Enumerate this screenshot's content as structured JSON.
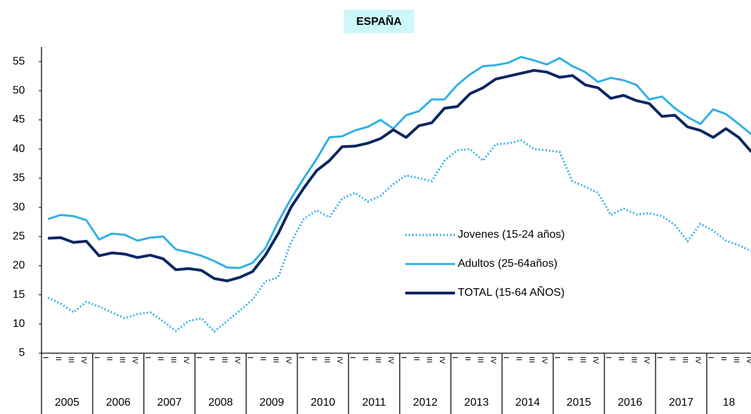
{
  "chart_data": {
    "type": "line",
    "title": "ESPAÑA",
    "categories": [
      "I",
      "II",
      "III",
      "IV",
      "I",
      "II",
      "III",
      "IV",
      "I",
      "II",
      "III",
      "IV",
      "I",
      "II",
      "III",
      "IV",
      "I",
      "II",
      "III",
      "IV",
      "I",
      "II",
      "III",
      "IV",
      "I",
      "II",
      "III",
      "IV",
      "I",
      "II",
      "III",
      "IV",
      "I",
      "II",
      "III",
      "IV",
      "I",
      "II",
      "III",
      "IV",
      "I",
      "II",
      "III",
      "IV",
      "I",
      "II",
      "III",
      "IV",
      "I",
      "II",
      "III",
      "IV",
      "I",
      "II",
      "III",
      "IV"
    ],
    "years": [
      "2005",
      "2006",
      "2007",
      "2008",
      "2009",
      "2010",
      "2011",
      "2012",
      "2013",
      "2014",
      "2015",
      "2016",
      "2017",
      "18"
    ],
    "series": [
      {
        "name": "Jovenes (15-24 años)",
        "color": "#2fb0e6",
        "style": "dotted",
        "values": [
          14.5,
          13.5,
          12,
          13.8,
          13,
          12,
          11,
          11.7,
          12,
          10.5,
          8.8,
          10.5,
          11,
          8.7,
          10.5,
          12.3,
          14.2,
          17.3,
          18,
          24,
          28,
          29.5,
          28.3,
          31.5,
          32.5,
          31,
          32,
          34,
          35.5,
          35,
          34.5,
          38,
          39.8,
          40,
          38,
          40.8,
          41,
          41.5,
          40,
          39.8,
          39.5,
          34.5,
          33.5,
          32.5,
          28.7,
          29.8,
          28.8,
          29,
          28.5,
          27,
          24.2,
          27.2,
          26,
          24.3,
          23.5,
          22.5
        ]
      },
      {
        "name": "Adultos (25-64años)",
        "color": "#2fb0e6",
        "style": "solid",
        "values": [
          28,
          28.7,
          28.5,
          27.8,
          24.5,
          25.5,
          25.3,
          24.3,
          24.8,
          25,
          22.8,
          22.3,
          21.7,
          20.8,
          19.7,
          19.6,
          20.5,
          23,
          27.5,
          31.5,
          35,
          38.3,
          42,
          42.2,
          43.2,
          43.8,
          45,
          43.5,
          45.8,
          46.5,
          48.5,
          48.5,
          51,
          52.8,
          54.2,
          54.4,
          54.8,
          55.8,
          55.2,
          54.5,
          55.6,
          54.2,
          53.2,
          51.5,
          52.2,
          51.8,
          51,
          48.5,
          49,
          47,
          45.5,
          44.3,
          46.8,
          46,
          44.3,
          42.5
        ]
      },
      {
        "name": "TOTAL (15-64 AÑOS)",
        "color": "#0c2660",
        "style": "solid",
        "values": [
          24.7,
          24.8,
          24,
          24.2,
          21.7,
          22.2,
          22,
          21.4,
          21.8,
          21.2,
          19.3,
          19.5,
          19.2,
          17.8,
          17.4,
          18,
          19,
          21.8,
          25.5,
          30,
          33.3,
          36.3,
          38,
          40.4,
          40.5,
          41,
          41.8,
          43.3,
          42,
          44,
          44.5,
          47,
          47.3,
          49.5,
          50.5,
          52,
          52.5,
          53,
          53.5,
          53.2,
          52.3,
          52.6,
          51,
          50.5,
          48.7,
          49.2,
          48.3,
          47.8,
          45.6,
          45.8,
          43.8,
          43.2,
          42,
          43.5,
          42,
          39.5
        ]
      }
    ],
    "ylim": [
      5,
      57.5
    ],
    "yticks": [
      5,
      10,
      15,
      20,
      25,
      30,
      35,
      40,
      45,
      50,
      55
    ],
    "grid": false
  }
}
